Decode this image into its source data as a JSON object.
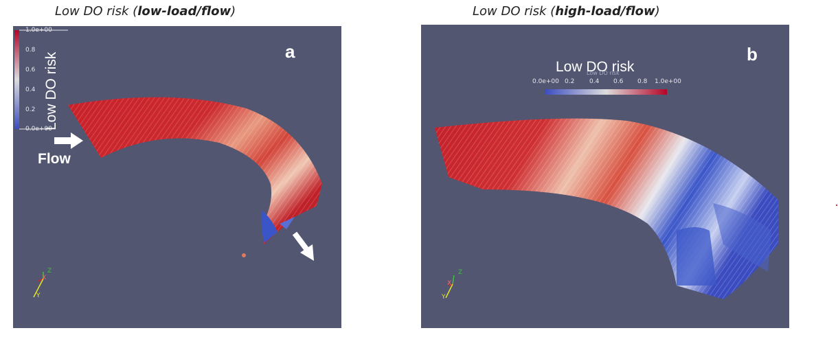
{
  "panel_a": {
    "title_plain": "Low DO risk (",
    "title_bold": "low-load/flow",
    "title_end": ")",
    "letter": "a",
    "colorbar_title": "Low DO risk",
    "colorbar_ticks": [
      "1.0e+00",
      "0.8",
      "0.6",
      "0.4",
      "0.2",
      "0.0e+00"
    ],
    "flow_label": "Flow"
  },
  "panel_b": {
    "title_plain": "Low DO risk (",
    "title_bold": "high-load/flow",
    "title_end": ")",
    "letter": "b",
    "colorbar_title": "Low DO risk",
    "colorbar_subtitle": "Low DO risk",
    "colorbar_ticks": [
      "0.0e+00",
      "0.2",
      "0.4",
      "0.6",
      "0.8",
      "1.0e+00"
    ]
  },
  "axis_labels": [
    "X",
    "Y",
    "Z"
  ],
  "colors": {
    "background_viewport": "#525670",
    "high_risk": "#c8202a",
    "mid": "#e8e8ee",
    "low_risk": "#3a55c8"
  }
}
